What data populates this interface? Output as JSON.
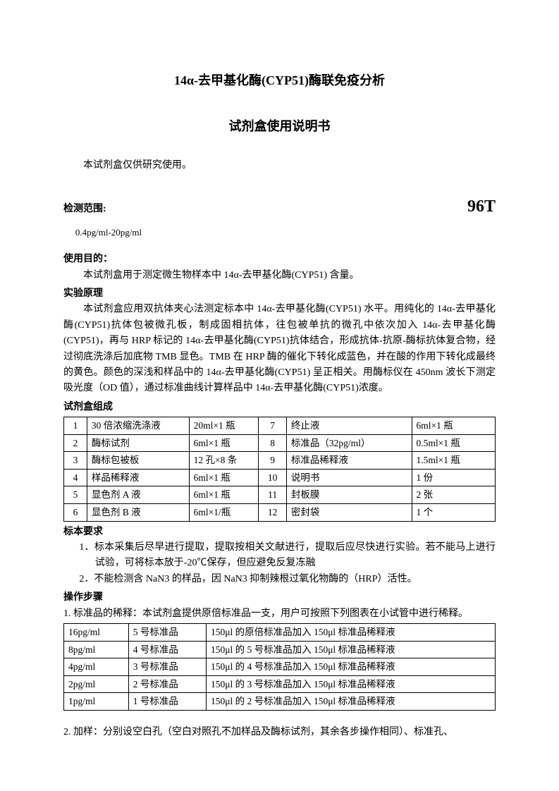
{
  "title_main": "14α-去甲基化酶(CYP51)酶联免疫分析",
  "title_sub": "试剂盒使用说明书",
  "intro": "本试剂盒仅供研究使用。",
  "range_heading": "检测范围:",
  "spec_right": "96T",
  "range_value": "0.4pg/ml-20pg/ml",
  "purpose_heading": "使用目的：",
  "purpose_text": "本试剂盒用于测定微生物样本中 14α-去甲基化酶(CYP51) 含量。",
  "principle_heading": "实验原理",
  "principle_text": "本试剂盒应用双抗体夹心法测定标本中 14α-去甲基化酶(CYP51) 水平。用纯化的 14α-去甲基化酶(CYP51)抗体包被微孔板，制成固相抗体，往包被单抗的微孔中依次加入 14α-去甲基化酶(CYP51)，再与 HRP 标记的 14α-去甲基化酶(CYP51)抗体结合，形成抗体-抗原-酶标抗体复合物，经过彻底洗涤后加底物 TMB 显色。TMB 在 HRP 酶的催化下转化成蓝色，并在酸的作用下转化成最终的黄色。颜色的深浅和样品中的 14α-去甲基化酶(CYP51) 呈正相关。用酶标仪在 450nm 波长下测定吸光度（OD 值），通过标准曲线计算样品中 14α-去甲基化酶(CYP51)浓度。",
  "composition_heading": "试剂盒组成",
  "comp_rows": [
    [
      "1",
      "30 倍浓缩洗涤液",
      "20ml×1 瓶",
      "7",
      "终止液",
      "6ml×1 瓶"
    ],
    [
      "2",
      "酶标试剂",
      "6ml×1 瓶",
      "8",
      "标准品（32pg/ml）",
      "0.5ml×1 瓶"
    ],
    [
      "3",
      "酶标包被板",
      "12 孔×8 条",
      "9",
      "标准品稀释液",
      "1.5ml×1 瓶"
    ],
    [
      "4",
      "样品稀释液",
      "6ml×1 瓶",
      "10",
      "说明书",
      "1 份"
    ],
    [
      "5",
      "显色剂 A 液",
      "6ml×1 瓶",
      "11",
      "封板膜",
      "2 张"
    ],
    [
      "6",
      "显色剂 B 液",
      "6ml×1/瓶",
      "12",
      "密封袋",
      "1 个"
    ]
  ],
  "sample_req_heading": "标本要求",
  "sample_req_1": "1．标本采集后尽早进行提取，提取按相关文献进行，提取后应尽快进行实验。若不能马上进行试验，可将标本放于-20℃保存，但应避免反复冻融",
  "sample_req_2": "2．不能检测含 NaN3 的样品，因 NaN3 抑制辣根过氧化物酶的（HRP）活性。",
  "steps_heading": "操作步骤",
  "step1": "1.    标准品的稀释：本试剂盒提供原倍标准品一支，用户可按照下列图表在小试管中进行稀释。",
  "dilution_rows": [
    [
      "16pg/ml",
      "5 号标准品",
      "150μl 的原倍标准品加入 150μl 标准品稀释液"
    ],
    [
      "8pg/ml",
      "4 号标准品",
      "150μl 的 5 号标准品加入 150μl 标准品稀释液"
    ],
    [
      "4pg/ml",
      "3 号标准品",
      "150μl 的 4 号标准品加入 150μl 标准品稀释液"
    ],
    [
      "2pg/ml",
      "2 号标准品",
      "150μl 的 3 号标准品加入 150μl 标准品稀释液"
    ],
    [
      "1pg/ml",
      "1 号标准品",
      "150μl 的 2 号标准品加入 150μl 标准品稀释液"
    ]
  ],
  "step2": "2.    加样：分别设空白孔（空白对照孔不加样品及酶标试剂，其余各步操作相同）、标准孔、"
}
